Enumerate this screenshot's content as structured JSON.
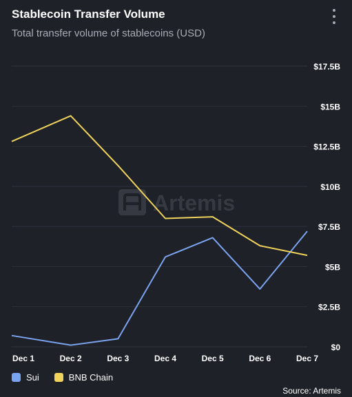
{
  "header": {
    "title": "Stablecoin Transfer Volume",
    "subtitle": "Total transfer volume of stablecoins (USD)",
    "menu_icon": "kebab-menu-icon"
  },
  "watermark": {
    "text": "Artemis",
    "icon": "artemis-logo-icon"
  },
  "source": "Source: Artemis",
  "colors": {
    "background": "#1f2129",
    "grid": "#2e313b",
    "sui": "#7ba4f0",
    "bnb": "#f0d35a"
  },
  "chart_data": {
    "type": "line",
    "x": [
      "Dec 1",
      "Dec 2",
      "Dec 3",
      "Dec 4",
      "Dec 5",
      "Dec 6",
      "Dec 7"
    ],
    "yticks": [
      0,
      2.5,
      5,
      7.5,
      10,
      12.5,
      15,
      17.5
    ],
    "ytick_labels": [
      "$0",
      "$2.5B",
      "$5B",
      "$7.5B",
      "$10B",
      "$12.5B",
      "$15B",
      "$17.5B"
    ],
    "ylim": [
      0,
      17.5
    ],
    "y_unit": "B USD",
    "grid": true,
    "legend_position": "bottom-left",
    "series": [
      {
        "name": "Sui",
        "color": "#7ba4f0",
        "values": [
          0.7,
          0.1,
          0.5,
          5.6,
          6.8,
          3.6,
          7.2
        ]
      },
      {
        "name": "BNB Chain",
        "color": "#f0d35a",
        "values": [
          12.8,
          14.4,
          11.3,
          8.0,
          8.1,
          6.3,
          5.7
        ]
      }
    ]
  }
}
